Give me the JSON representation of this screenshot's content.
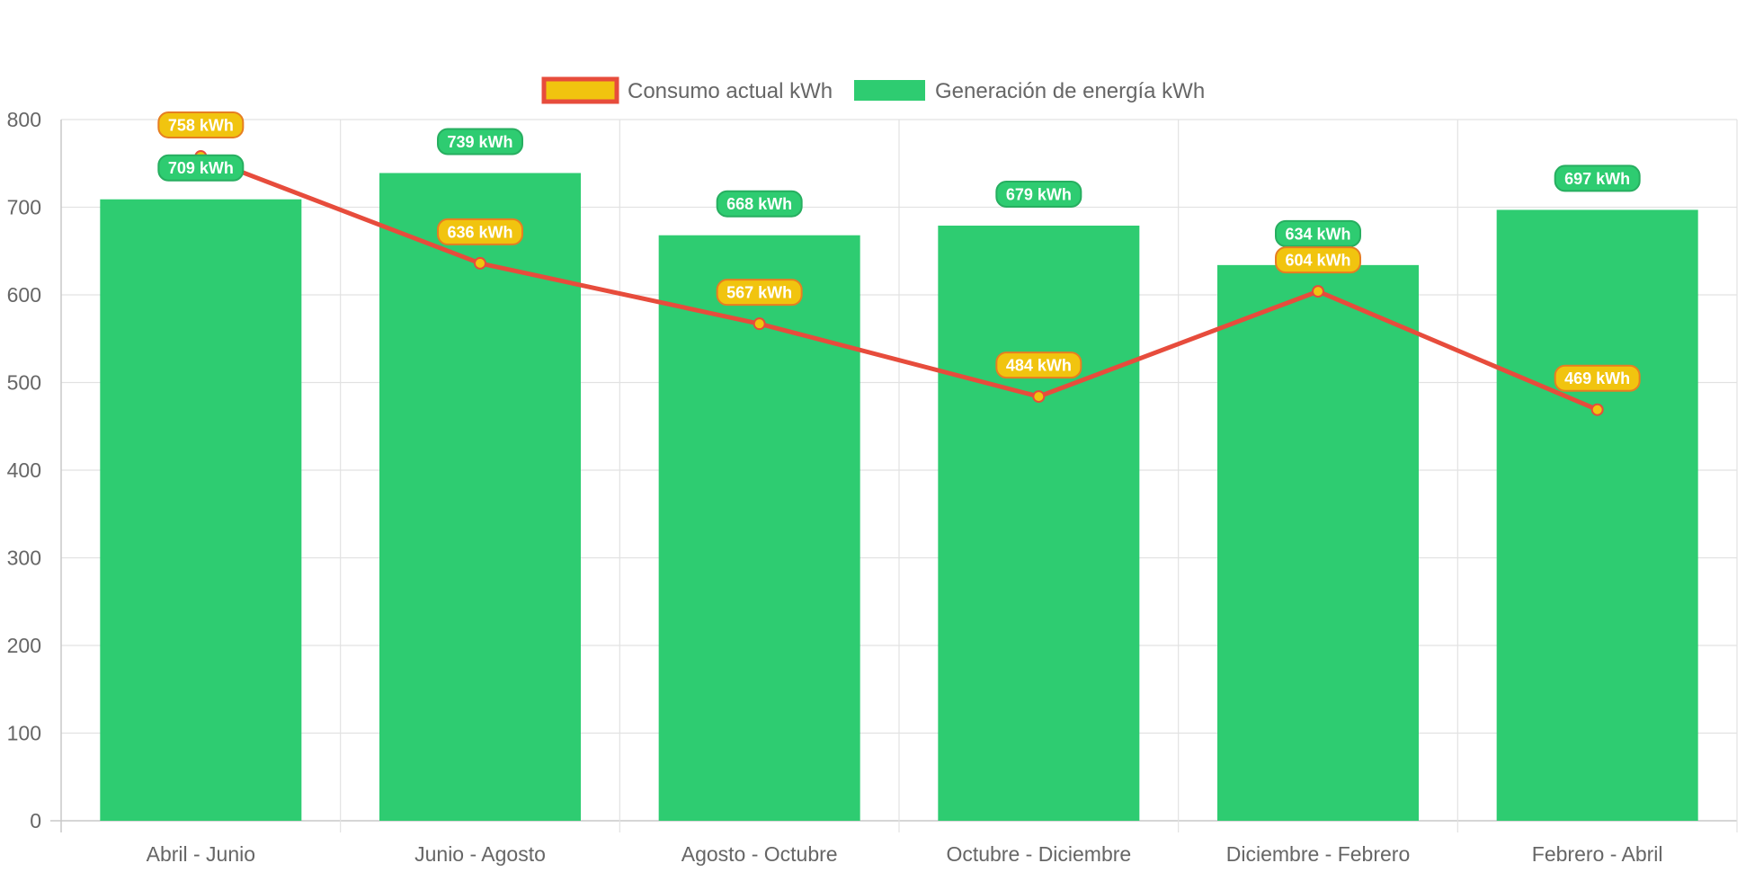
{
  "chart_data": {
    "type": "bar",
    "categories": [
      "Abril - Junio",
      "Junio - Agosto",
      "Agosto - Octubre",
      "Octubre - Diciembre",
      "Diciembre - Febrero",
      "Febrero - Abril"
    ],
    "series": [
      {
        "name": "Generación de energía kWh",
        "type": "bar",
        "values": [
          709,
          739,
          668,
          679,
          634,
          697
        ],
        "labels": [
          "709 kWh",
          "739 kWh",
          "668 kWh",
          "679 kWh",
          "634 kWh",
          "697 kWh"
        ],
        "color": "#2ecc71",
        "label_border": "#27ae60"
      },
      {
        "name": "Consumo actual kWh",
        "type": "line",
        "values": [
          758,
          636,
          567,
          484,
          604,
          469
        ],
        "labels": [
          "758 kWh",
          "636 kWh",
          "567 kWh",
          "484 kWh",
          "604 kWh",
          "469 kWh"
        ],
        "color": "#e74c3c",
        "fill": "#f1c40f",
        "label_border": "#e67e22"
      }
    ],
    "legend": {
      "position": "top",
      "entries": [
        "Consumo actual kWh",
        "Generación de energía kWh"
      ]
    },
    "ylim": [
      0,
      800
    ],
    "y_ticks": [
      0,
      100,
      200,
      300,
      400,
      500,
      600,
      700,
      800
    ],
    "y_tick_labels": [
      "0",
      "100",
      "200",
      "300",
      "400",
      "500",
      "600",
      "700",
      "800"
    ],
    "grid": true,
    "title": "",
    "xlabel": "",
    "ylabel": ""
  }
}
